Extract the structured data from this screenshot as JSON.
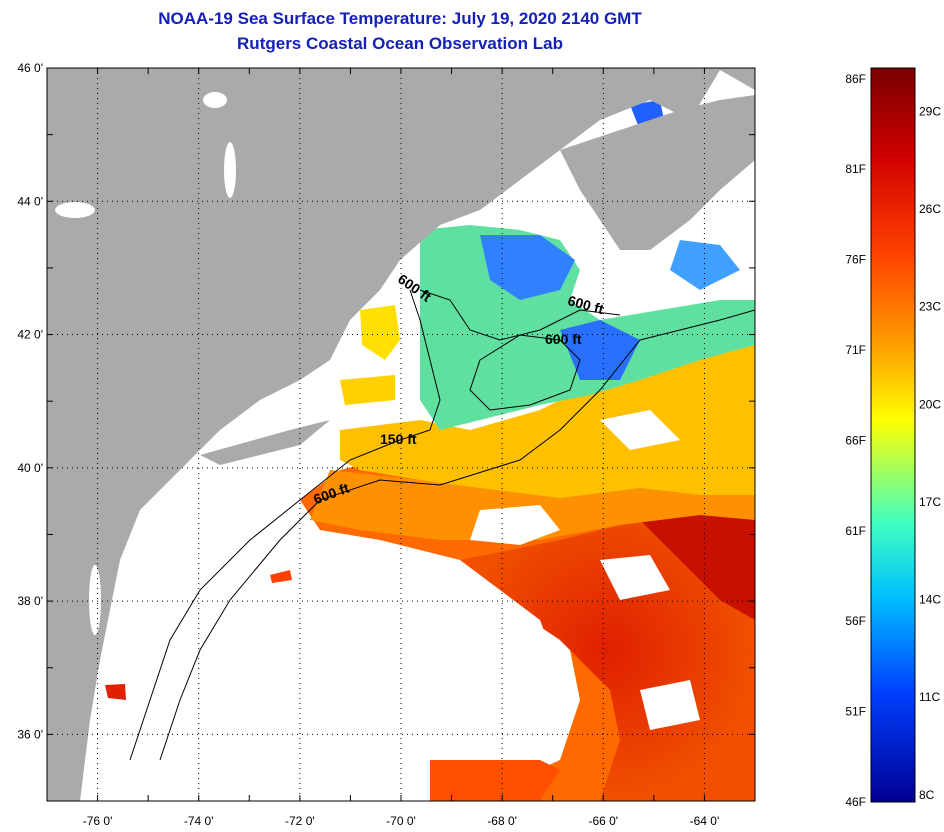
{
  "title": {
    "line1": "NOAA-19 Sea Surface Temperature:  July 19, 2020 2140 GMT",
    "line2": "Rutgers Coastal Ocean Observation Lab"
  },
  "map": {
    "lat_labels": [
      "46 0'",
      "44 0'",
      "42 0'",
      "40 0'",
      "38 0'",
      "36 0'"
    ],
    "lon_labels": [
      "-76 0'",
      "-74 0'",
      "-72 0'",
      "-70 0'",
      "-68 0'",
      "-66 0'",
      "-64 0'"
    ],
    "lat_range": [
      35,
      46
    ],
    "lon_range": [
      -77,
      -63
    ],
    "contour_labels": [
      "600 ft",
      "600 ft",
      "600 ft",
      "150 ft",
      "600 ft"
    ],
    "land_color": "#aaaaaa",
    "cloud_color": "#ffffff"
  },
  "colorbar": {
    "fahrenheit_labels": [
      "86F",
      "81F",
      "76F",
      "71F",
      "66F",
      "61F",
      "56F",
      "51F",
      "46F"
    ],
    "celsius_labels": [
      "29C",
      "26C",
      "23C",
      "20C",
      "17C",
      "14C",
      "11C",
      "8C"
    ],
    "colors": [
      "#7a0000",
      "#d00000",
      "#ff4000",
      "#ffa000",
      "#ffff00",
      "#40ffc0",
      "#00c0ff",
      "#0040ff",
      "#000090"
    ]
  }
}
